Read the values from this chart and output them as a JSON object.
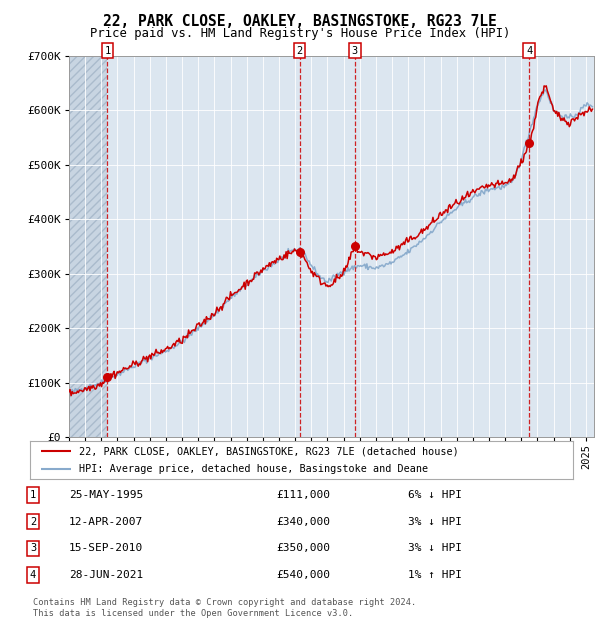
{
  "title": "22, PARK CLOSE, OAKLEY, BASINGSTOKE, RG23 7LE",
  "subtitle": "Price paid vs. HM Land Registry's House Price Index (HPI)",
  "ylim": [
    0,
    700000
  ],
  "yticks": [
    0,
    100000,
    200000,
    300000,
    400000,
    500000,
    600000,
    700000
  ],
  "xlim_start": 1993.0,
  "xlim_end": 2025.5,
  "background_color": "#ffffff",
  "plot_bg_color": "#dce6f0",
  "grid_color": "#ffffff",
  "legend_label_red": "22, PARK CLOSE, OAKLEY, BASINGSTOKE, RG23 7LE (detached house)",
  "legend_label_blue": "HPI: Average price, detached house, Basingstoke and Deane",
  "sales": [
    {
      "num": 1,
      "date": "25-MAY-1995",
      "price": 111000,
      "pct": "6%",
      "dir": "↓",
      "year": 1995.38
    },
    {
      "num": 2,
      "date": "12-APR-2007",
      "price": 340000,
      "pct": "3%",
      "dir": "↓",
      "year": 2007.27
    },
    {
      "num": 3,
      "date": "15-SEP-2010",
      "price": 350000,
      "pct": "3%",
      "dir": "↓",
      "year": 2010.7
    },
    {
      "num": 4,
      "date": "28-JUN-2021",
      "price": 540000,
      "pct": "1%",
      "dir": "↑",
      "year": 2021.49
    }
  ],
  "footer": "Contains HM Land Registry data © Crown copyright and database right 2024.\nThis data is licensed under the Open Government Licence v3.0.",
  "red_color": "#cc0000",
  "blue_color": "#88aacc"
}
